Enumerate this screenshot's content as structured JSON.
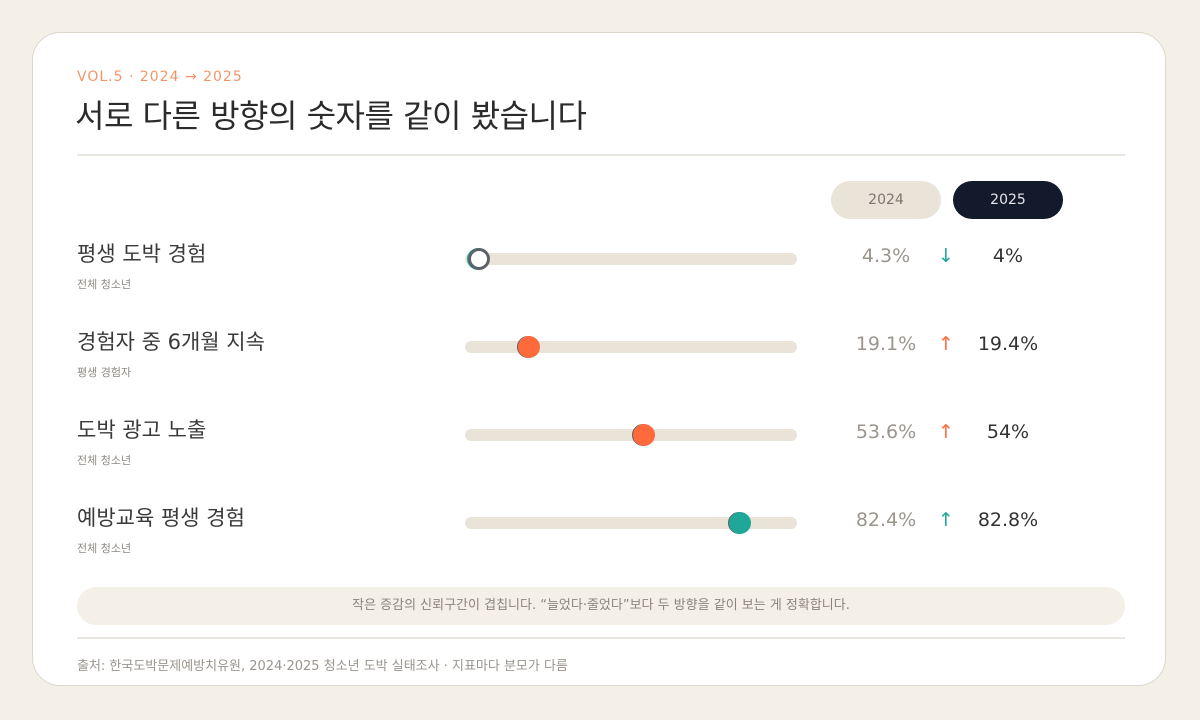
{
  "header": {
    "eyebrow": "VOL.5 · 2024 → 2025",
    "title": "서로 다른 방향의 숫자를 같이 봤습니다"
  },
  "legend": {
    "year_a": "2024",
    "year_b": "2025"
  },
  "colors": {
    "accent_orange": "#ff6a3d",
    "accent_teal": "#1fa89a",
    "dark_pill": "#121a2b",
    "track": "#e9e3d8",
    "eyebrow": "#f0956a"
  },
  "chart_data": {
    "type": "dumbbell",
    "xlim": [
      0,
      100
    ],
    "unit": "%",
    "series": [
      {
        "name": "2024"
      },
      {
        "name": "2025"
      }
    ],
    "rows": [
      {
        "label": "평생 도박 경험",
        "sub": "전체 청소년",
        "v2024": 4.3,
        "v2025": 4,
        "v2024_text": "4.3%",
        "v2025_text": "4%",
        "arrow": "↓",
        "color": "#1fa89a"
      },
      {
        "label": "경험자 중 6개월 지속",
        "sub": "평생 경험자",
        "v2024": 19.1,
        "v2025": 19.4,
        "v2024_text": "19.1%",
        "v2025_text": "19.4%",
        "arrow": "↑",
        "color": "#ff6a3d"
      },
      {
        "label": "도박 광고 노출",
        "sub": "전체 청소년",
        "v2024": 53.6,
        "v2025": 54,
        "v2024_text": "53.6%",
        "v2025_text": "54%",
        "arrow": "↑",
        "color": "#ff6a3d"
      },
      {
        "label": "예방교육 평생 경험",
        "sub": "전체 청소년",
        "v2024": 82.4,
        "v2025": 82.8,
        "v2024_text": "82.4%",
        "v2025_text": "82.8%",
        "arrow": "↑",
        "color": "#1fa89a"
      }
    ]
  },
  "note": "작은 증감의 신뢰구간이 겹칩니다. “늘었다·줄었다”보다 두 방향을 같이 보는 게 정확합니다.",
  "source": "출처: 한국도박문제예방치유원, 2024·2025 청소년 도박 실태조사 · 지표마다 분모가 다름"
}
